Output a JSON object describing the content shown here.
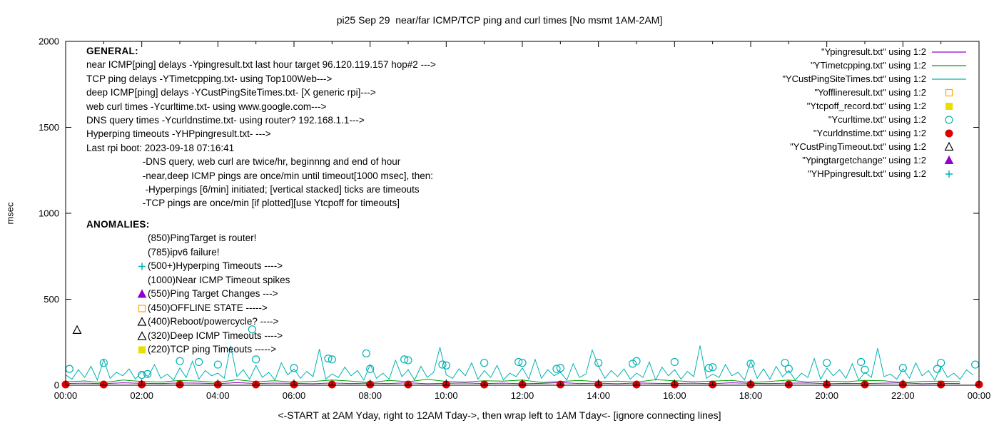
{
  "general": {
    "heading": "GENERAL:",
    "lines": [
      "near ICMP[ping] delays -Ypingresult.txt last hour target 96.120.119.157 hop#2 --->",
      "TCP ping delays -YTimetcpping.txt- using Top100Web--->",
      "deep ICMP[ping] delays -YCustPingSiteTimes.txt- [X generic rpi]--->",
      "web curl times -Ycurltime.txt- using www.google.com--->",
      "DNS query times -Ycurldnstime.txt- using router? 192.168.1.1--->",
      "Hyperping timeouts -YHPpingresult.txt- --->",
      "Last rpi boot: 2023-09-18 07:16:41",
      "                     -DNS query, web curl are twice/hr, beginnng and end of hour",
      "                     -near,deep ICMP pings are once/min until timeout[1000 msec], then:",
      "                      -Hyperpings [6/min] initiated; [vertical stacked] ticks are timeouts",
      "                     -TCP pings are once/min [if plotted][use Ytcpoff for timeouts]"
    ]
  },
  "anomalies": {
    "heading": "ANOMALIES:",
    "items": [
      {
        "marker": null,
        "color": null,
        "text": "(850)PingTarget is router!"
      },
      {
        "marker": null,
        "color": null,
        "text": "(785)ipv6 failure!"
      },
      {
        "marker": "plus",
        "color": "#00b2b2",
        "text": "(500+)Hyperping Timeouts ---->"
      },
      {
        "marker": null,
        "color": null,
        "text": "(1000)Near ICMP Timeout spikes"
      },
      {
        "marker": "triangle-filled",
        "color": "#9400d3",
        "text": "(550)Ping Target Changes --->"
      },
      {
        "marker": "square-open",
        "color": "#ffa500",
        "text": "(450)OFFLINE STATE ----->"
      },
      {
        "marker": "triangle-open",
        "color": "#000000",
        "text": "(400)Reboot/powercycle? ---->"
      },
      {
        "marker": "triangle-open",
        "color": "#000000",
        "text": "(320)Deep ICMP Timeouts ---->"
      },
      {
        "marker": "square-filled",
        "color": "#e8df00",
        "text": "(220)TCP ping Timeouts ----->"
      }
    ]
  },
  "chart_data": {
    "type": "line",
    "title": "pi25 Sep 29  near/far ICMP/TCP ping and curl times [No msmt 1AM-2AM]",
    "xlabel": "<-START at 2AM Yday, right to 12AM Tday->, then wrap left to 1AM Tday<- [ignore connecting lines]",
    "ylabel": "msec",
    "x_range_hours": [
      0,
      24
    ],
    "ylim": [
      0,
      2000
    ],
    "y_ticks": [
      0,
      500,
      1000,
      1500,
      2000
    ],
    "x_tick_labels": [
      "00:00",
      "02:00",
      "04:00",
      "06:00",
      "08:00",
      "10:00",
      "12:00",
      "14:00",
      "16:00",
      "18:00",
      "20:00",
      "22:00",
      "00:00"
    ],
    "grid": false,
    "legend_position": "top-right",
    "legend": [
      {
        "label": "\"Ypingresult.txt\" using 1:2",
        "marker": "line",
        "color": "#9400d3"
      },
      {
        "label": "\"YTimetcpping.txt\" using 1:2",
        "marker": "line",
        "color": "#00a000"
      },
      {
        "label": "\"YCustPingSiteTimes.txt\" using 1:2",
        "marker": "line",
        "color": "#00b2b2"
      },
      {
        "label": "\"Yofflineresult.txt\" using 1:2",
        "marker": "square-open",
        "color": "#ffa500"
      },
      {
        "label": "\"Ytcpoff_record.txt\" using 1:2",
        "marker": "square-filled",
        "color": "#e8df00"
      },
      {
        "label": "\"Ycurltime.txt\" using 1:2",
        "marker": "circle-open",
        "color": "#00b2b2"
      },
      {
        "label": "\"Ycurldnstime.txt\" using 1:2",
        "marker": "circle-filled",
        "color": "#dd0000"
      },
      {
        "label": "\"YCustPingTimeout.txt\" using 1:2",
        "marker": "triangle-open",
        "color": "#000000"
      },
      {
        "label": "\"Ypingtargetchange\" using 1:2",
        "marker": "triangle-filled",
        "color": "#9400d3"
      },
      {
        "label": "\"YHPpingresult.txt\" using 1:2",
        "marker": "plus",
        "color": "#00b2b2"
      }
    ],
    "series": [
      {
        "name": "Ypingresult.txt",
        "kind": "line",
        "color": "#9400d3",
        "x_start": 0,
        "x_step_h": 0.5,
        "values": [
          10,
          12,
          9,
          14,
          11,
          10,
          13,
          12,
          9,
          15,
          10,
          12,
          11,
          9,
          13,
          10,
          12,
          10,
          14,
          9,
          11,
          13,
          10,
          12,
          9,
          11,
          15,
          10,
          12,
          9,
          13,
          11,
          10,
          12,
          9,
          14,
          11,
          10,
          12,
          13,
          9,
          11,
          10,
          12,
          14,
          9,
          11,
          10
        ]
      },
      {
        "name": "YTimetcpping.txt",
        "kind": "line",
        "color": "#00a000",
        "x_start": 0,
        "x_step_h": 0.5,
        "values": [
          20,
          25,
          15,
          30,
          22,
          18,
          28,
          24,
          16,
          32,
          20,
          26,
          18,
          22,
          30,
          24,
          15,
          28,
          20,
          34,
          22,
          18,
          26,
          24,
          30,
          16,
          22,
          28,
          20,
          24,
          18,
          32,
          26,
          20,
          24,
          28,
          16,
          22,
          30,
          18,
          24,
          20,
          28,
          26,
          15,
          22,
          24,
          20
        ]
      },
      {
        "name": "YCustPingSiteTimes.txt",
        "kind": "line",
        "color": "#00b2b2",
        "x_start": 0,
        "x_step_h": 0.1667,
        "values": [
          60,
          35,
          90,
          45,
          110,
          30,
          150,
          40,
          75,
          55,
          95,
          35,
          80,
          50,
          120,
          40,
          65,
          30,
          100,
          45,
          140,
          35,
          85,
          55,
          70,
          40,
          230,
          50,
          90,
          35,
          115,
          45,
          75,
          30,
          130,
          60,
          95,
          40,
          80,
          50,
          210,
          35,
          65,
          45,
          105,
          55,
          85,
          30,
          120,
          40,
          70,
          35,
          145,
          50,
          90,
          30,
          110,
          45,
          75,
          220,
          60,
          40,
          95,
          55,
          130,
          35,
          85,
          45,
          115,
          30,
          70,
          50,
          100,
          35,
          150,
          40,
          90,
          55,
          75,
          30,
          125,
          45,
          65,
          205,
          110,
          40,
          85,
          50,
          95,
          35,
          70,
          45,
          135,
          30,
          105,
          55,
          90,
          35,
          80,
          50,
          230,
          40,
          65,
          45,
          120,
          55,
          75,
          30,
          140,
          40,
          95,
          35,
          110,
          50,
          85,
          30,
          70,
          45,
          155,
          35,
          100,
          55,
          90,
          40,
          125,
          30,
          75,
          45,
          215,
          50,
          65,
          35,
          95,
          40,
          130,
          55,
          85,
          30,
          110,
          45,
          70,
          35,
          90,
          60
        ]
      },
      {
        "name": "Ycurltime.txt",
        "kind": "points",
        "marker": "circle-open",
        "color": "#00b2b2",
        "points": [
          [
            0.1,
            95
          ],
          [
            1.0,
            130
          ],
          [
            2.0,
            60
          ],
          [
            2.15,
            65
          ],
          [
            3.0,
            140
          ],
          [
            3.5,
            135
          ],
          [
            4.0,
            120
          ],
          [
            4.9,
            325
          ],
          [
            5.0,
            150
          ],
          [
            6.0,
            100
          ],
          [
            6.9,
            155
          ],
          [
            7.0,
            150
          ],
          [
            7.9,
            185
          ],
          [
            8.0,
            95
          ],
          [
            8.9,
            150
          ],
          [
            9.0,
            145
          ],
          [
            9.9,
            120
          ],
          [
            10.0,
            115
          ],
          [
            11.0,
            130
          ],
          [
            11.9,
            135
          ],
          [
            12.0,
            130
          ],
          [
            12.9,
            95
          ],
          [
            13.0,
            100
          ],
          [
            14.0,
            130
          ],
          [
            14.9,
            125
          ],
          [
            15.0,
            140
          ],
          [
            16.0,
            135
          ],
          [
            16.9,
            100
          ],
          [
            17.0,
            105
          ],
          [
            18.0,
            125
          ],
          [
            18.9,
            130
          ],
          [
            19.0,
            95
          ],
          [
            20.0,
            130
          ],
          [
            20.9,
            135
          ],
          [
            21.0,
            90
          ],
          [
            22.0,
            100
          ],
          [
            22.9,
            95
          ],
          [
            23.0,
            130
          ],
          [
            23.9,
            120
          ]
        ]
      },
      {
        "name": "Ycurldnstime.txt",
        "kind": "points",
        "marker": "circle-filled",
        "color": "#dd0000",
        "x_start": 0,
        "x_step_h": 1,
        "values": [
          4,
          4,
          4,
          4,
          4,
          4,
          4,
          4,
          4,
          4,
          4,
          4,
          4,
          4,
          4,
          4,
          4,
          4,
          4,
          4,
          4,
          4,
          4,
          4,
          4
        ]
      },
      {
        "name": "YCustPingTimeout.txt",
        "kind": "points",
        "marker": "triangle-open",
        "color": "#000000",
        "points": [
          [
            0.3,
            320
          ]
        ]
      }
    ]
  }
}
